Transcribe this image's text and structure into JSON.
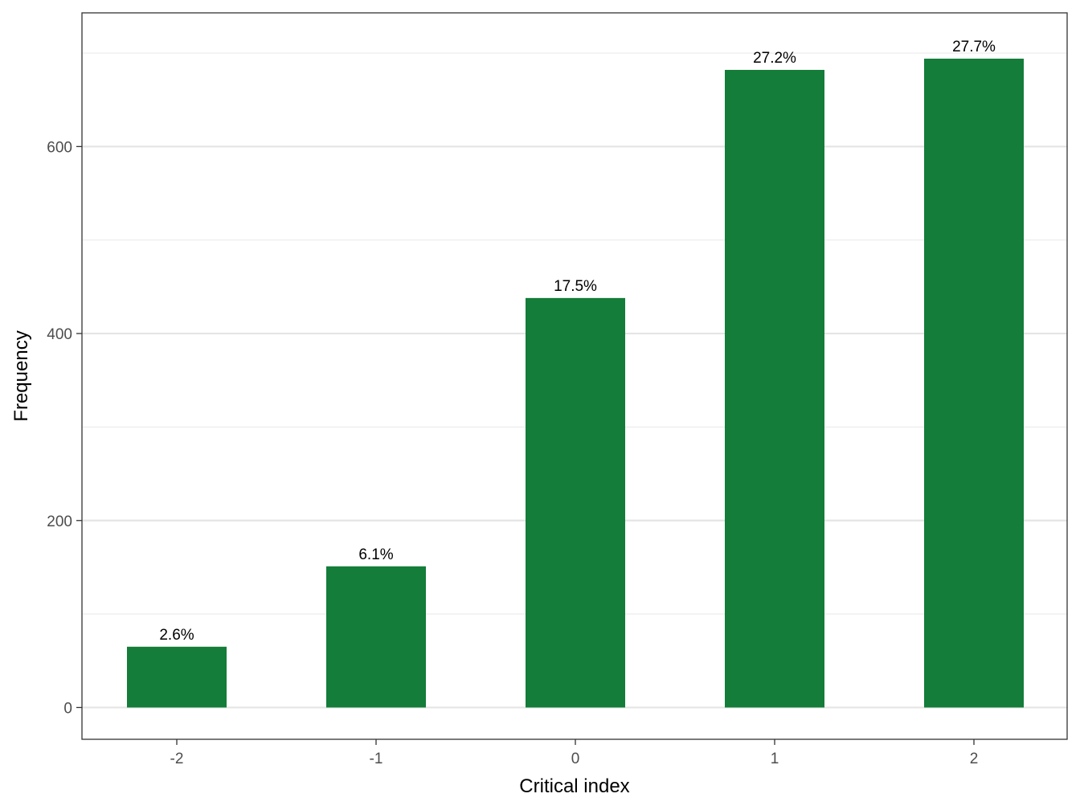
{
  "chart_data": {
    "type": "bar",
    "categories": [
      "-2",
      "-1",
      "0",
      "1",
      "2"
    ],
    "values": [
      65,
      151,
      438,
      682,
      694
    ],
    "bar_labels": [
      "2.6%",
      "6.1%",
      "17.5%",
      "27.2%",
      "27.7%"
    ],
    "xlabel": "Critical index",
    "ylabel": "Frequency",
    "ylim": [
      -34,
      743
    ],
    "yticks": [
      0,
      200,
      400,
      600
    ],
    "ytick_labels": [
      "0",
      "200",
      "400",
      "600"
    ],
    "grid": true,
    "legend": "none",
    "bar_color": "#137d39"
  }
}
